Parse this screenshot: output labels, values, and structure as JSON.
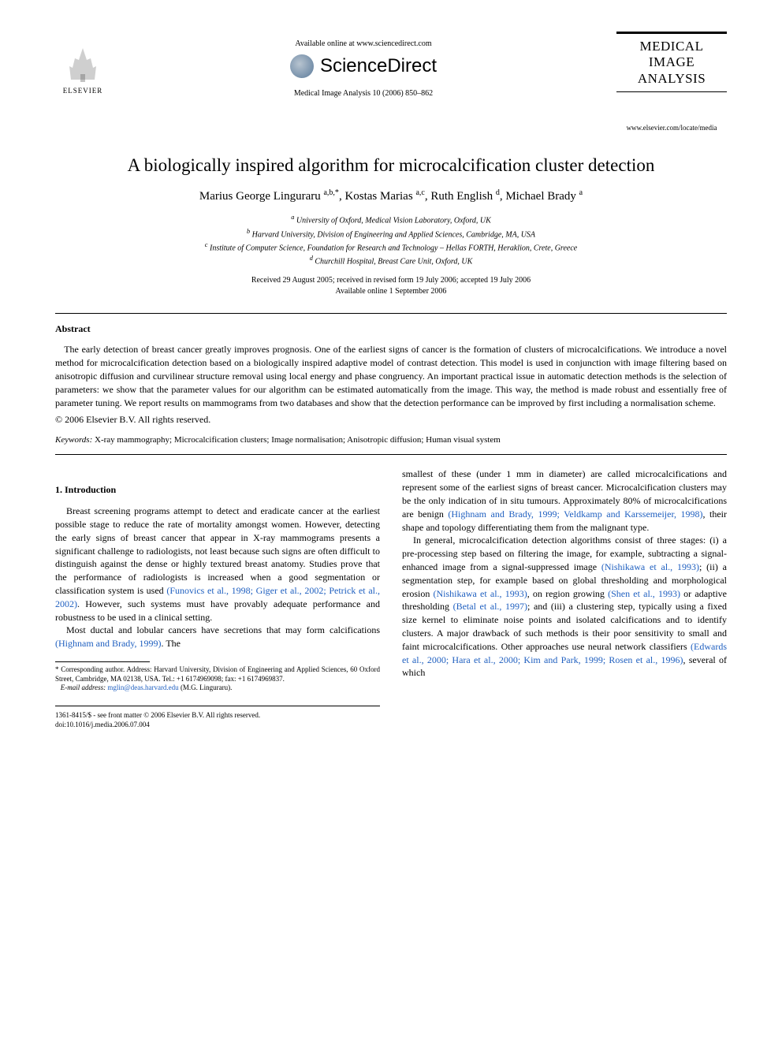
{
  "header": {
    "publisher_name": "ELSEVIER",
    "available_online": "Available online at www.sciencedirect.com",
    "platform_name": "ScienceDirect",
    "citation": "Medical Image Analysis 10 (2006) 850–862",
    "journal_title_line1": "MEDICAL",
    "journal_title_line2": "IMAGE",
    "journal_title_line3": "ANALYSIS",
    "journal_url": "www.elsevier.com/locate/media"
  },
  "article": {
    "title": "A biologically inspired algorithm for microcalcification cluster detection",
    "authors_html": "Marius George Linguraru <span class='sup'>a,b,*</span>, Kostas Marias <span class='sup'>a,c</span>, Ruth English <span class='sup'>d</span>, Michael Brady <span class='sup'>a</span>",
    "affiliations": [
      "a University of Oxford, Medical Vision Laboratory, Oxford, UK",
      "b Harvard University, Division of Engineering and Applied Sciences, Cambridge, MA, USA",
      "c Institute of Computer Science, Foundation for Research and Technology – Hellas FORTH, Heraklion, Crete, Greece",
      "d Churchill Hospital, Breast Care Unit, Oxford, UK"
    ],
    "dates_line1": "Received 29 August 2005; received in revised form 19 July 2006; accepted 19 July 2006",
    "dates_line2": "Available online 1 September 2006"
  },
  "abstract": {
    "label": "Abstract",
    "text": "The early detection of breast cancer greatly improves prognosis. One of the earliest signs of cancer is the formation of clusters of microcalcifications. We introduce a novel method for microcalcification detection based on a biologically inspired adaptive model of contrast detection. This model is used in conjunction with image filtering based on anisotropic diffusion and curvilinear structure removal using local energy and phase congruency. An important practical issue in automatic detection methods is the selection of parameters: we show that the parameter values for our algorithm can be estimated automatically from the image. This way, the method is made robust and essentially free of parameter tuning. We report results on mammograms from two databases and show that the detection performance can be improved by first including a normalisation scheme.",
    "copyright": "© 2006 Elsevier B.V. All rights reserved."
  },
  "keywords": {
    "label": "Keywords:",
    "text": "X-ray mammography; Microcalcification clusters; Image normalisation; Anisotropic diffusion; Human visual system"
  },
  "section1": {
    "heading": "1. Introduction",
    "col1_p1": "Breast screening programs attempt to detect and eradicate cancer at the earliest possible stage to reduce the rate of mortality amongst women. However, detecting the early signs of breast cancer that appear in X-ray mammograms presents a significant challenge to radiologists, not least because such signs are often difficult to distinguish against the dense or highly textured breast anatomy. Studies prove that the performance of radiologists is increased when a good segmentation or classification system is used ",
    "col1_ref1": "(Funovics et al., 1998; Giger et al., 2002; Petrick et al., 2002)",
    "col1_p1_cont": ". However, such systems must have provably adequate performance and robustness to be used in a clinical setting.",
    "col1_p2": "Most ductal and lobular cancers have secretions that may form calcifications ",
    "col1_ref2": "(Highnam and Brady, 1999)",
    "col1_p2_cont": ". The",
    "col2_p1": "smallest of these (under 1 mm in diameter) are called microcalcifications and represent some of the earliest signs of breast cancer. Microcalcification clusters may be the only indication of in situ tumours. Approximately 80% of microcalcifications are benign ",
    "col2_ref1": "(Highnam and Brady, 1999; Veldkamp and Karssemeijer, 1998)",
    "col2_p1_cont": ", their shape and topology differentiating them from the malignant type.",
    "col2_p2": "In general, microcalcification detection algorithms consist of three stages: (i) a pre-processing step based on filtering the image, for example, subtracting a signal-enhanced image from a signal-suppressed image ",
    "col2_ref2": "(Nishikawa et al., 1993)",
    "col2_p2_cont1": "; (ii) a segmentation step, for example based on global thresholding and morphological erosion ",
    "col2_ref3": "(Nishikawa et al., 1993)",
    "col2_p2_cont2": ", on region growing ",
    "col2_ref4": "(Shen et al., 1993)",
    "col2_p2_cont3": " or adaptive thresholding ",
    "col2_ref5": "(Betal et al., 1997)",
    "col2_p2_cont4": "; and (iii) a clustering step, typically using a fixed size kernel to eliminate noise points and isolated calcifications and to identify clusters. A major drawback of such methods is their poor sensitivity to small and faint microcalcifications. Other approaches use neural network classifiers ",
    "col2_ref6": "(Edwards et al., 2000; Hara et al., 2000; Kim and Park, 1999; Rosen et al., 1996)",
    "col2_p2_cont5": ", several of which"
  },
  "footnote": {
    "corresponding": "* Corresponding author. Address: Harvard University, Division of Engineering and Applied Sciences, 60 Oxford Street, Cambridge, MA 02138, USA. Tel.: +1 6174969098; fax: +1 6174969837.",
    "email_label": "E-mail address:",
    "email": "mglin@deas.harvard.edu",
    "email_name": "(M.G. Linguraru)."
  },
  "footer": {
    "line1": "1361-8415/$ - see front matter © 2006 Elsevier B.V. All rights reserved.",
    "line2": "doi:10.1016/j.media.2006.07.004"
  },
  "colors": {
    "text": "#000000",
    "link": "#2060c0",
    "background": "#ffffff"
  }
}
